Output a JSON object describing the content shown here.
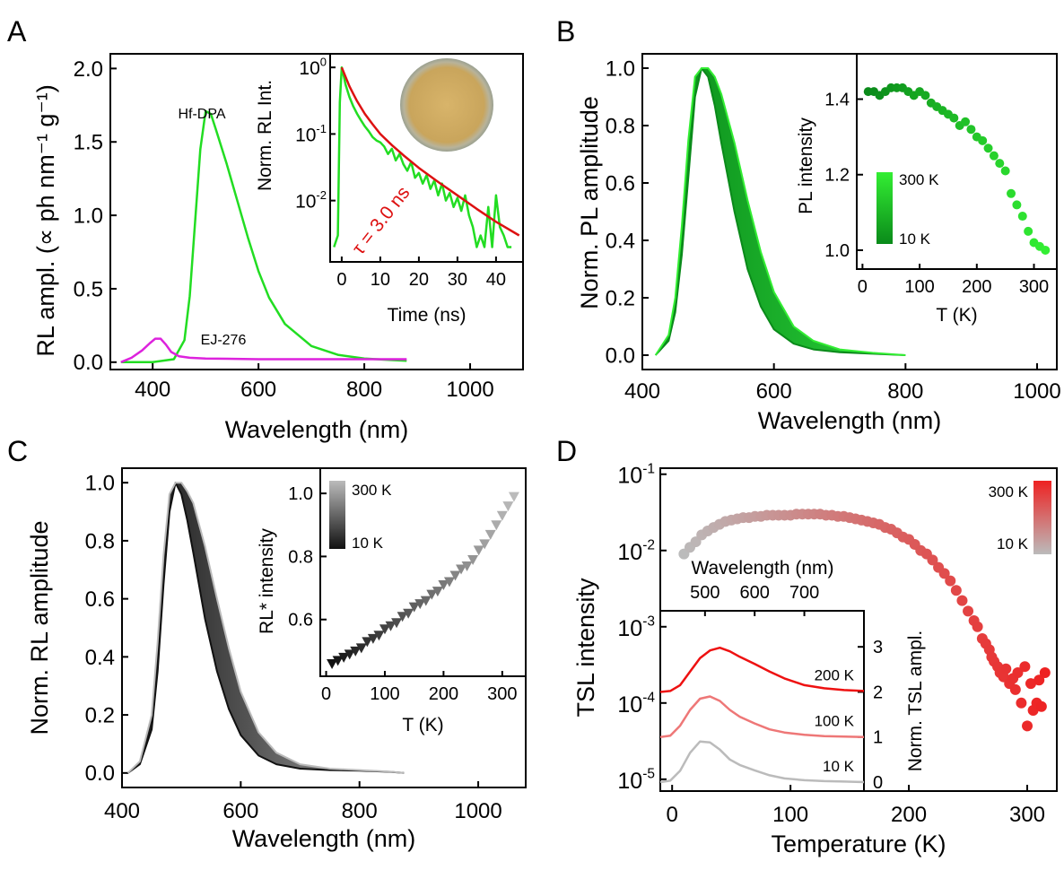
{
  "chart_data": [
    {
      "panel": "A",
      "type": "line",
      "xlabel": "Wavelength (nm)",
      "ylabel": "RL ampl. (∝ ph nm⁻¹ g⁻¹)",
      "xlim": [
        320,
        1100
      ],
      "ylim": [
        -0.05,
        2.1
      ],
      "xticks": [
        400,
        600,
        800,
        1000
      ],
      "yticks": [
        0.0,
        0.5,
        1.0,
        1.5,
        2.0
      ],
      "ytick_labels": [
        "0.0",
        "0.5",
        "1.0",
        "1.5",
        "2.0"
      ],
      "series": [
        {
          "name": "Hf-DPA",
          "color": "#22dd22",
          "x": [
            340,
            400,
            440,
            460,
            470,
            480,
            490,
            500,
            510,
            520,
            540,
            560,
            580,
            600,
            620,
            650,
            700,
            750,
            800,
            850,
            880
          ],
          "y": [
            0.0,
            0.0,
            0.02,
            0.15,
            0.45,
            0.95,
            1.45,
            1.71,
            1.69,
            1.58,
            1.35,
            1.1,
            0.85,
            0.62,
            0.44,
            0.26,
            0.11,
            0.05,
            0.025,
            0.015,
            0.01
          ]
        },
        {
          "name": "EJ-276",
          "color": "#dd22dd",
          "x": [
            340,
            360,
            380,
            395,
            405,
            415,
            425,
            435,
            450,
            470,
            500,
            600,
            700,
            800,
            880
          ],
          "y": [
            0.0,
            0.03,
            0.08,
            0.13,
            0.16,
            0.16,
            0.12,
            0.07,
            0.04,
            0.03,
            0.025,
            0.02,
            0.02,
            0.02,
            0.02
          ]
        }
      ],
      "inset": {
        "type": "line",
        "xlabel": "Time (ns)",
        "ylabel": "Norm. RL Int.",
        "yscale": "log",
        "xlim": [
          -3,
          47
        ],
        "ylim": [
          0.0012,
          1.6
        ],
        "xticks": [
          0,
          10,
          20,
          30,
          40
        ],
        "yticks": [
          1,
          0.1,
          0.01
        ],
        "annotation": "τ = 3.0 ns",
        "series": [
          {
            "name": "data",
            "color": "#22dd22",
            "x": [
              -2,
              -1,
              -0.5,
              0,
              0.5,
              1,
              2,
              3,
              4,
              5,
              6,
              7,
              8,
              9,
              10,
              11,
              12,
              13,
              14,
              15,
              16,
              17,
              18,
              19,
              20,
              21,
              22,
              23,
              24,
              25,
              26,
              27,
              28,
              29,
              30,
              31,
              32,
              33,
              34,
              35,
              36,
              37,
              38,
              39,
              40,
              41,
              42,
              43,
              44
            ],
            "y": [
              0.002,
              0.003,
              0.3,
              1.0,
              0.75,
              0.55,
              0.36,
              0.26,
              0.2,
              0.16,
              0.13,
              0.11,
              0.09,
              0.08,
              0.075,
              0.065,
              0.05,
              0.06,
              0.04,
              0.05,
              0.035,
              0.028,
              0.038,
              0.022,
              0.026,
              0.018,
              0.024,
              0.015,
              0.02,
              0.012,
              0.018,
              0.01,
              0.013,
              0.008,
              0.011,
              0.007,
              0.012,
              0.006,
              0.004,
              0.002,
              0.003,
              0.002,
              0.008,
              0.002,
              0.012,
              0.004,
              0.003,
              0.002,
              0.002
            ]
          },
          {
            "name": "fit",
            "color": "#dd1111",
            "x": [
              0,
              1,
              2,
              3,
              4,
              6,
              8,
              10,
              13,
              16,
              20,
              25,
              30,
              35,
              40,
              46
            ],
            "y": [
              1.0,
              0.72,
              0.52,
              0.4,
              0.31,
              0.2,
              0.14,
              0.1,
              0.068,
              0.048,
              0.031,
              0.019,
              0.012,
              0.0075,
              0.0048,
              0.003
            ]
          }
        ]
      }
    },
    {
      "panel": "B",
      "type": "line",
      "xlabel": "Wavelength (nm)",
      "ylabel": "Norm. PL amplitude",
      "xlim": [
        400,
        1030
      ],
      "ylim": [
        -0.05,
        1.05
      ],
      "xticks": [
        400,
        600,
        800,
        1000
      ],
      "yticks": [
        0.0,
        0.2,
        0.4,
        0.6,
        0.8,
        1.0
      ],
      "ytick_labels": [
        "0.0",
        "0.2",
        "0.4",
        "0.6",
        "0.8",
        "1.0"
      ],
      "band": {
        "color_low": "#0a8a1a",
        "color_high": "#33ee33",
        "x": [
          420,
          440,
          450,
          460,
          470,
          480,
          490,
          500,
          510,
          520,
          540,
          560,
          580,
          600,
          630,
          660,
          700,
          750,
          800
        ],
        "y_low": [
          0.0,
          0.05,
          0.15,
          0.35,
          0.62,
          0.9,
          1.0,
          0.97,
          0.87,
          0.74,
          0.5,
          0.3,
          0.17,
          0.09,
          0.04,
          0.02,
          0.01,
          0.005,
          0.0
        ],
        "y_high": [
          0.0,
          0.07,
          0.2,
          0.45,
          0.75,
          0.97,
          1.0,
          1.0,
          0.97,
          0.91,
          0.74,
          0.54,
          0.36,
          0.22,
          0.1,
          0.05,
          0.02,
          0.008,
          0.0
        ]
      },
      "inset": {
        "type": "scatter",
        "xlabel": "T (K)",
        "ylabel": "PL intensity",
        "xlim": [
          -10,
          340
        ],
        "ylim": [
          0.95,
          1.52
        ],
        "xticks": [
          0,
          100,
          200,
          300
        ],
        "yticks": [
          1.0,
          1.2,
          1.4
        ],
        "ytick_labels": [
          "1.0",
          "1.2",
          "1.4"
        ],
        "colorbar": {
          "top_label": "300 K",
          "bottom_label": "10 K",
          "color_low": "#0a8a1a",
          "color_high": "#33ee33"
        },
        "x": [
          10,
          20,
          30,
          40,
          50,
          60,
          70,
          80,
          90,
          100,
          110,
          120,
          130,
          140,
          150,
          160,
          170,
          180,
          190,
          200,
          210,
          220,
          230,
          240,
          250,
          260,
          270,
          280,
          290,
          300,
          310,
          320
        ],
        "y": [
          1.42,
          1.42,
          1.41,
          1.42,
          1.43,
          1.43,
          1.43,
          1.42,
          1.41,
          1.42,
          1.41,
          1.39,
          1.38,
          1.37,
          1.36,
          1.35,
          1.33,
          1.34,
          1.32,
          1.3,
          1.29,
          1.27,
          1.25,
          1.23,
          1.21,
          1.15,
          1.12,
          1.09,
          1.05,
          1.02,
          1.01,
          1.0
        ]
      }
    },
    {
      "panel": "C",
      "type": "line",
      "xlabel": "Wavelength (nm)",
      "ylabel": "Norm. RL amplitude",
      "xlim": [
        400,
        1080
      ],
      "ylim": [
        -0.05,
        1.05
      ],
      "xticks": [
        400,
        600,
        800,
        1000
      ],
      "yticks": [
        0.0,
        0.2,
        0.4,
        0.6,
        0.8,
        1.0
      ],
      "ytick_labels": [
        "0.0",
        "0.2",
        "0.4",
        "0.6",
        "0.8",
        "1.0"
      ],
      "band": {
        "color_low": "#111111",
        "color_high": "#bbbbbb",
        "x": [
          410,
          430,
          450,
          460,
          470,
          480,
          490,
          500,
          510,
          520,
          540,
          560,
          580,
          600,
          630,
          660,
          700,
          750,
          800,
          850,
          875
        ],
        "y_low": [
          0.0,
          0.03,
          0.15,
          0.35,
          0.65,
          0.9,
          1.0,
          0.96,
          0.87,
          0.76,
          0.53,
          0.35,
          0.22,
          0.13,
          0.06,
          0.03,
          0.015,
          0.01,
          0.008,
          0.004,
          0.0
        ],
        "y_high": [
          0.0,
          0.04,
          0.2,
          0.45,
          0.75,
          0.96,
          1.0,
          1.0,
          0.97,
          0.93,
          0.78,
          0.6,
          0.43,
          0.28,
          0.14,
          0.07,
          0.03,
          0.015,
          0.01,
          0.005,
          0.0
        ]
      },
      "inset": {
        "type": "scatter",
        "xlabel": "T (K)",
        "ylabel": "RL* intensity",
        "xlim": [
          -10,
          340
        ],
        "ylim": [
          0.42,
          1.08
        ],
        "xticks": [
          0,
          100,
          200,
          300
        ],
        "yticks": [
          0.6,
          0.8,
          1.0
        ],
        "ytick_labels": [
          "0.6",
          "0.8",
          "1.0"
        ],
        "colorbar": {
          "top_label": "300 K",
          "bottom_label": "10 K",
          "color_low": "#111111",
          "color_high": "#bbbbbb"
        },
        "x": [
          10,
          20,
          30,
          40,
          50,
          60,
          70,
          80,
          90,
          100,
          110,
          120,
          130,
          140,
          150,
          160,
          170,
          180,
          190,
          200,
          210,
          220,
          230,
          240,
          250,
          260,
          270,
          280,
          290,
          300,
          310,
          320
        ],
        "y": [
          0.46,
          0.47,
          0.48,
          0.49,
          0.5,
          0.51,
          0.53,
          0.54,
          0.55,
          0.57,
          0.58,
          0.59,
          0.61,
          0.62,
          0.64,
          0.65,
          0.66,
          0.68,
          0.69,
          0.71,
          0.72,
          0.74,
          0.76,
          0.77,
          0.79,
          0.82,
          0.84,
          0.87,
          0.9,
          0.93,
          0.96,
          0.99
        ]
      }
    },
    {
      "panel": "D",
      "type": "scatter",
      "xlabel": "Temperature (K)",
      "ylabel": "TSL intensity",
      "yscale": "log",
      "xlim": [
        -10,
        325
      ],
      "ylim": [
        7e-06,
        0.12
      ],
      "xticks": [
        0,
        100,
        200,
        300
      ],
      "yticks": [
        0.1,
        0.01,
        0.001,
        0.0001,
        1e-05
      ],
      "ytick_labels": [
        [
          "10",
          "-1"
        ],
        [
          "10",
          "-2"
        ],
        [
          "10",
          "-3"
        ],
        [
          "10",
          "-4"
        ],
        [
          "10",
          "-5"
        ]
      ],
      "colorbar": {
        "top_label": "300 K",
        "bottom_label": "10 K",
        "color_low": "#bbbbbb",
        "color_high": "#ee2222"
      },
      "x": [
        10,
        15,
        20,
        25,
        30,
        35,
        40,
        45,
        50,
        55,
        60,
        65,
        70,
        75,
        80,
        85,
        90,
        95,
        100,
        105,
        110,
        115,
        120,
        125,
        130,
        135,
        140,
        145,
        150,
        155,
        160,
        165,
        170,
        175,
        180,
        185,
        190,
        195,
        200,
        205,
        210,
        215,
        220,
        225,
        230,
        235,
        240,
        245,
        250,
        255,
        258,
        262,
        265,
        268,
        270,
        272,
        275,
        277,
        280,
        282,
        285,
        288,
        290,
        292,
        295,
        298,
        300,
        303,
        305,
        308,
        310,
        312,
        315
      ],
      "y": [
        0.009,
        0.011,
        0.013,
        0.016,
        0.018,
        0.02,
        0.022,
        0.024,
        0.025,
        0.026,
        0.027,
        0.027,
        0.028,
        0.028,
        0.029,
        0.029,
        0.029,
        0.029,
        0.029,
        0.03,
        0.03,
        0.03,
        0.03,
        0.03,
        0.029,
        0.029,
        0.028,
        0.028,
        0.027,
        0.026,
        0.025,
        0.024,
        0.023,
        0.022,
        0.02,
        0.019,
        0.017,
        0.015,
        0.014,
        0.012,
        0.01,
        0.009,
        0.0075,
        0.006,
        0.005,
        0.004,
        0.003,
        0.0022,
        0.0016,
        0.0012,
        0.001,
        0.0007,
        0.0006,
        0.0005,
        0.0004,
        0.00035,
        0.0003,
        0.00025,
        0.00022,
        0.00028,
        0.00018,
        0.00021,
        0.00015,
        0.00025,
        0.0001,
        0.0003,
        5e-05,
        0.00018,
        8e-05,
        0.0001,
        0.0002,
        9e-05,
        0.00025
      ],
      "inset": {
        "type": "line",
        "xlabel": "Wavelength (nm)",
        "ylabel": "Norm. TSL ampl.",
        "xlim": [
          410,
          820
        ],
        "ylim": [
          -0.2,
          3.8
        ],
        "xticks": [
          500,
          600,
          700
        ],
        "yticks": [
          0,
          1,
          2,
          3
        ],
        "series": [
          {
            "name": "200 K",
            "color": "#ee1111",
            "x": [
              410,
              430,
              450,
              470,
              490,
              510,
              530,
              550,
              570,
              600,
              630,
              660,
              700,
              740,
              780,
              820
            ],
            "y": [
              2.0,
              2.02,
              2.15,
              2.45,
              2.75,
              2.92,
              2.98,
              2.9,
              2.78,
              2.62,
              2.45,
              2.3,
              2.15,
              2.08,
              2.04,
              2.02
            ]
          },
          {
            "name": "100 K",
            "color": "#ee7777",
            "x": [
              410,
              430,
              450,
              470,
              490,
              510,
              530,
              550,
              570,
              600,
              630,
              660,
              700,
              740,
              780,
              820
            ],
            "y": [
              1.0,
              1.03,
              1.25,
              1.6,
              1.85,
              1.9,
              1.8,
              1.6,
              1.45,
              1.3,
              1.17,
              1.1,
              1.05,
              1.02,
              1.01,
              1.0
            ]
          },
          {
            "name": "10 K",
            "color": "#bbbbbb",
            "x": [
              410,
              430,
              450,
              470,
              490,
              510,
              530,
              550,
              570,
              600,
              630,
              660,
              700,
              740,
              780,
              820
            ],
            "y": [
              0.0,
              0.03,
              0.25,
              0.65,
              0.9,
              0.88,
              0.72,
              0.5,
              0.38,
              0.26,
              0.15,
              0.08,
              0.04,
              0.02,
              0.01,
              0.0
            ]
          }
        ]
      }
    }
  ]
}
